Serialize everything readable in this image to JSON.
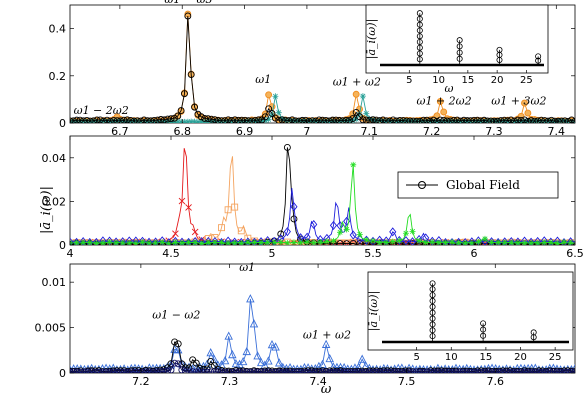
{
  "figure": {
    "shared_ylabel": "|ā_i(ω)|",
    "xlabel": "ω"
  },
  "colors": {
    "global": "#000000",
    "orange": "#f08c1e",
    "teal": "#2aa198",
    "red": "#e41a1c",
    "peach": "#f4a460",
    "blue": "#1f1fdc",
    "green": "#22dd22",
    "lightblue": "#3a6fd8",
    "navy": "#101060"
  },
  "chart_data": [
    {
      "type": "line",
      "panel": "top",
      "xlim": [
        6.62,
        7.43
      ],
      "ylim": [
        0,
        0.5
      ],
      "xticks": [
        "6.7",
        "6.8",
        "6.9",
        "7",
        "7.1",
        "7.2",
        "7.3",
        "7.4"
      ],
      "xtick_values": [
        6.7,
        6.8,
        6.9,
        7.0,
        7.1,
        7.2,
        7.3,
        7.4
      ],
      "yticks": [
        "0",
        "0.2",
        "0.4"
      ],
      "ytick_values": [
        0,
        0.2,
        0.4
      ],
      "grid": false,
      "annotations": [
        {
          "text": "ω1 − ω3",
          "x": 6.81,
          "y": 0.5
        },
        {
          "text": "ω1 − 2ω2",
          "x": 6.67,
          "y": 0.03
        },
        {
          "text": "ω1",
          "x": 6.93,
          "y": 0.16
        },
        {
          "text": "ω1 + ω2",
          "x": 7.08,
          "y": 0.15
        },
        {
          "text": "ω1 + 2ω2",
          "x": 7.22,
          "y": 0.07
        },
        {
          "text": "ω1 + 3ω2",
          "x": 7.34,
          "y": 0.07
        }
      ],
      "series": [
        {
          "color_key": "orange",
          "marker": "circle-filled",
          "peaks": [
            [
              6.695,
              0.02
            ],
            [
              6.81,
              0.49
            ],
            [
              6.94,
              0.13
            ],
            [
              7.08,
              0.12
            ],
            [
              7.215,
              0.09
            ],
            [
              7.35,
              0.08
            ]
          ],
          "base": 0.008
        },
        {
          "color_key": "teal",
          "marker": "star",
          "peaks": [
            [
              6.95,
              0.11
            ],
            [
              7.09,
              0.11
            ]
          ],
          "base": 0.005
        },
        {
          "color_key": "global",
          "marker": "circle",
          "peaks": [
            [
              6.81,
              0.48
            ],
            [
              6.94,
              0.06
            ],
            [
              7.08,
              0.04
            ]
          ],
          "base": 0.01
        }
      ],
      "inset": {
        "xlim": [
          0,
          28
        ],
        "ylim": [
          0,
          0.5
        ],
        "xticks": [
          "5",
          "10",
          "15",
          "20",
          "25"
        ],
        "xtick_values": [
          5,
          10,
          15,
          20,
          25
        ],
        "xlabel": "ω",
        "ylabel": "|ā_i(ω)|",
        "stems": [
          [
            6.8,
            0.48
          ],
          [
            13.6,
            0.23
          ],
          [
            20.4,
            0.14
          ],
          [
            27.0,
            0.08
          ]
        ]
      }
    },
    {
      "type": "line",
      "panel": "middle",
      "xlim": [
        4.0,
        6.5
      ],
      "ylim": [
        0,
        0.05
      ],
      "xticks": [
        "4",
        "4.5",
        "5",
        "5.5",
        "6",
        "6.5"
      ],
      "xtick_values": [
        4.0,
        4.5,
        5.0,
        5.5,
        6.0,
        6.5
      ],
      "yticks": [
        "0",
        "0.02",
        "0.04"
      ],
      "ytick_values": [
        0,
        0.02,
        0.04
      ],
      "grid": false,
      "legend": {
        "position": "top-right",
        "entries": [
          "Global Field"
        ]
      },
      "series": [
        {
          "color_key": "red",
          "marker": "x",
          "peaks": [
            [
              4.57,
              0.05
            ],
            [
              4.54,
              0.006
            ],
            [
              4.61,
              0.004
            ]
          ],
          "base": 0.001
        },
        {
          "color_key": "peach",
          "marker": "square",
          "peaks": [
            [
              4.8,
              0.045
            ],
            [
              4.76,
              0.008
            ],
            [
              4.86,
              0.006
            ],
            [
              4.7,
              0.004
            ]
          ],
          "base": 0.001
        },
        {
          "name": "Global Field",
          "color_key": "global",
          "marker": "circle",
          "peaks": [
            [
              5.08,
              0.048
            ],
            [
              5.1,
              0.008
            ]
          ],
          "base": 0.0005
        },
        {
          "color_key": "blue",
          "marker": "diamond",
          "peaks": [
            [
              5.1,
              0.025
            ],
            [
              5.2,
              0.01
            ],
            [
              5.32,
              0.02
            ],
            [
              5.38,
              0.015
            ],
            [
              5.6,
              0.005
            ],
            [
              5.75,
              0.004
            ]
          ],
          "base": 0.0015
        },
        {
          "color_key": "green",
          "marker": "star",
          "peaks": [
            [
              5.4,
              0.037
            ],
            [
              5.35,
              0.008
            ],
            [
              5.68,
              0.015
            ],
            [
              6.05,
              0.002
            ]
          ],
          "base": 0.001
        }
      ]
    },
    {
      "type": "line",
      "panel": "bottom",
      "xlim": [
        7.12,
        7.69
      ],
      "ylim": [
        0,
        0.012
      ],
      "xticks": [
        "7.2",
        "7.3",
        "7.4",
        "7.5",
        "7.6"
      ],
      "xtick_values": [
        7.2,
        7.3,
        7.4,
        7.5,
        7.6
      ],
      "yticks": [
        "0",
        "0.005",
        "0.01"
      ],
      "ytick_values": [
        0,
        0.005,
        0.01
      ],
      "grid": false,
      "annotations": [
        {
          "text": "ω1 − ω2",
          "x": 7.24,
          "y": 0.0058
        },
        {
          "text": "ω1",
          "x": 7.32,
          "y": 0.011
        },
        {
          "text": "ω1 + ω2",
          "x": 7.41,
          "y": 0.0036
        }
      ],
      "series": [
        {
          "color_key": "lightblue",
          "marker": "triangle",
          "peaks": [
            [
              7.325,
              0.01
            ],
            [
              7.3,
              0.004
            ],
            [
              7.35,
              0.004
            ],
            [
              7.41,
              0.003
            ],
            [
              7.24,
              0.0035
            ],
            [
              7.28,
              0.002
            ],
            [
              7.45,
              0.0012
            ]
          ],
          "base": 0.0004
        },
        {
          "color_key": "global",
          "marker": "circle",
          "peaks": [
            [
              7.24,
              0.005
            ],
            [
              7.26,
              0.0015
            ],
            [
              7.28,
              0.0012
            ]
          ],
          "base": 0.0002
        },
        {
          "color_key": "navy",
          "marker": "circle",
          "peaks": [
            [
              7.24,
              0.0015
            ]
          ],
          "base": 0.0001
        }
      ],
      "inset": {
        "xlim": [
          0,
          27
        ],
        "ylim": [
          0,
          0.012
        ],
        "xticks": [
          "5",
          "10",
          "15",
          "20",
          "25"
        ],
        "xtick_values": [
          5,
          10,
          15,
          20,
          25
        ],
        "ylabel": "|ā_i(ω)|",
        "stems": [
          [
            7.3,
            0.011
          ],
          [
            14.6,
            0.0035
          ],
          [
            21.9,
            0.0018
          ]
        ]
      }
    }
  ]
}
